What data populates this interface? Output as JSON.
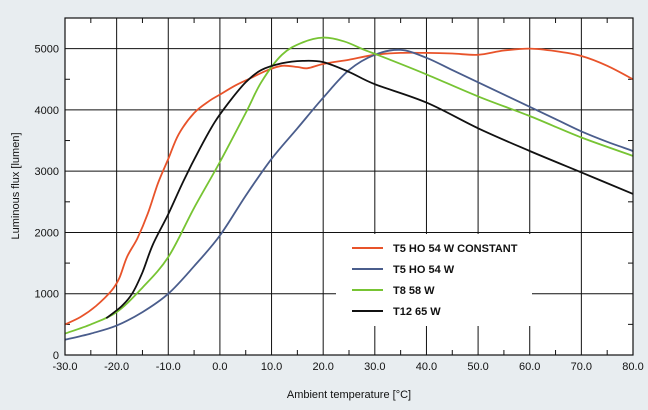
{
  "chart_data": {
    "type": "line",
    "title": "",
    "xlabel": "Ambient temperature [°C]",
    "ylabel": "Luminous flux [lumen]",
    "xlim": [
      -30,
      80
    ],
    "ylim": [
      0,
      5500
    ],
    "xticks": [
      -30,
      -20,
      -10,
      0,
      10,
      20,
      30,
      40,
      50,
      60,
      70,
      80
    ],
    "xtick_labels": [
      "-30.0",
      "-20.0",
      "-10.0",
      "0.0",
      "10.0",
      "20.0",
      "30.0",
      "40.0",
      "50.0",
      "60.0",
      "70.0",
      "80.0"
    ],
    "xminor": [
      -25,
      -15,
      -5,
      5,
      15,
      25,
      35,
      45,
      55,
      65,
      75
    ],
    "yticks": [
      0,
      1000,
      2000,
      3000,
      4000,
      5000
    ],
    "ytick_labels": [
      "0",
      "1000",
      "2000",
      "3000",
      "4000",
      "5000"
    ],
    "yminor": [
      500,
      1500,
      2500,
      3500,
      4500
    ],
    "grid": true,
    "legend_position": "lower-center-right",
    "series": [
      {
        "name": "T5 HO 54 W CONSTANT",
        "color": "#e8532a",
        "points": [
          [
            -30,
            500
          ],
          [
            -27,
            620
          ],
          [
            -24,
            800
          ],
          [
            -21,
            1050
          ],
          [
            -19.5,
            1250
          ],
          [
            -18,
            1600
          ],
          [
            -16,
            1900
          ],
          [
            -14,
            2300
          ],
          [
            -12,
            2800
          ],
          [
            -10,
            3200
          ],
          [
            -8,
            3600
          ],
          [
            -5,
            3950
          ],
          [
            -2,
            4150
          ],
          [
            0,
            4250
          ],
          [
            3,
            4400
          ],
          [
            6,
            4520
          ],
          [
            9,
            4640
          ],
          [
            12,
            4720
          ],
          [
            15,
            4700
          ],
          [
            17,
            4680
          ],
          [
            20,
            4750
          ],
          [
            25,
            4820
          ],
          [
            30,
            4900
          ],
          [
            35,
            4930
          ],
          [
            40,
            4930
          ],
          [
            45,
            4920
          ],
          [
            50,
            4900
          ],
          [
            55,
            4970
          ],
          [
            60,
            5000
          ],
          [
            65,
            4960
          ],
          [
            70,
            4880
          ],
          [
            75,
            4720
          ],
          [
            80,
            4500
          ]
        ]
      },
      {
        "name": "T5 HO 54 W",
        "color": "#4a5d8c",
        "points": [
          [
            -30,
            250
          ],
          [
            -25,
            350
          ],
          [
            -20,
            480
          ],
          [
            -15,
            700
          ],
          [
            -10,
            1000
          ],
          [
            -5,
            1450
          ],
          [
            0,
            1950
          ],
          [
            5,
            2600
          ],
          [
            10,
            3200
          ],
          [
            15,
            3700
          ],
          [
            20,
            4200
          ],
          [
            25,
            4650
          ],
          [
            30,
            4900
          ],
          [
            35,
            4980
          ],
          [
            40,
            4850
          ],
          [
            45,
            4650
          ],
          [
            50,
            4450
          ],
          [
            55,
            4250
          ],
          [
            60,
            4050
          ],
          [
            65,
            3850
          ],
          [
            70,
            3650
          ],
          [
            75,
            3480
          ],
          [
            80,
            3330
          ]
        ]
      },
      {
        "name": "T8 58 W",
        "color": "#77c433",
        "points": [
          [
            -30,
            350
          ],
          [
            -25,
            500
          ],
          [
            -20,
            700
          ],
          [
            -15,
            1100
          ],
          [
            -10,
            1600
          ],
          [
            -5,
            2400
          ],
          [
            0,
            3150
          ],
          [
            5,
            3950
          ],
          [
            8,
            4450
          ],
          [
            12,
            4900
          ],
          [
            16,
            5100
          ],
          [
            20,
            5180
          ],
          [
            24,
            5120
          ],
          [
            28,
            4980
          ],
          [
            32,
            4850
          ],
          [
            40,
            4580
          ],
          [
            50,
            4220
          ],
          [
            60,
            3900
          ],
          [
            70,
            3550
          ],
          [
            80,
            3250
          ]
        ]
      },
      {
        "name": "T12 65 W",
        "color": "#111111",
        "points": [
          [
            -22,
            600
          ],
          [
            -19,
            800
          ],
          [
            -17,
            1000
          ],
          [
            -15,
            1350
          ],
          [
            -13,
            1800
          ],
          [
            -10,
            2300
          ],
          [
            -7,
            2850
          ],
          [
            -4,
            3350
          ],
          [
            -1,
            3800
          ],
          [
            2,
            4150
          ],
          [
            5,
            4450
          ],
          [
            8,
            4650
          ],
          [
            12,
            4760
          ],
          [
            16,
            4800
          ],
          [
            20,
            4780
          ],
          [
            25,
            4620
          ],
          [
            30,
            4420
          ],
          [
            40,
            4120
          ],
          [
            50,
            3700
          ],
          [
            60,
            3330
          ],
          [
            70,
            2980
          ],
          [
            80,
            2630
          ]
        ]
      }
    ]
  }
}
